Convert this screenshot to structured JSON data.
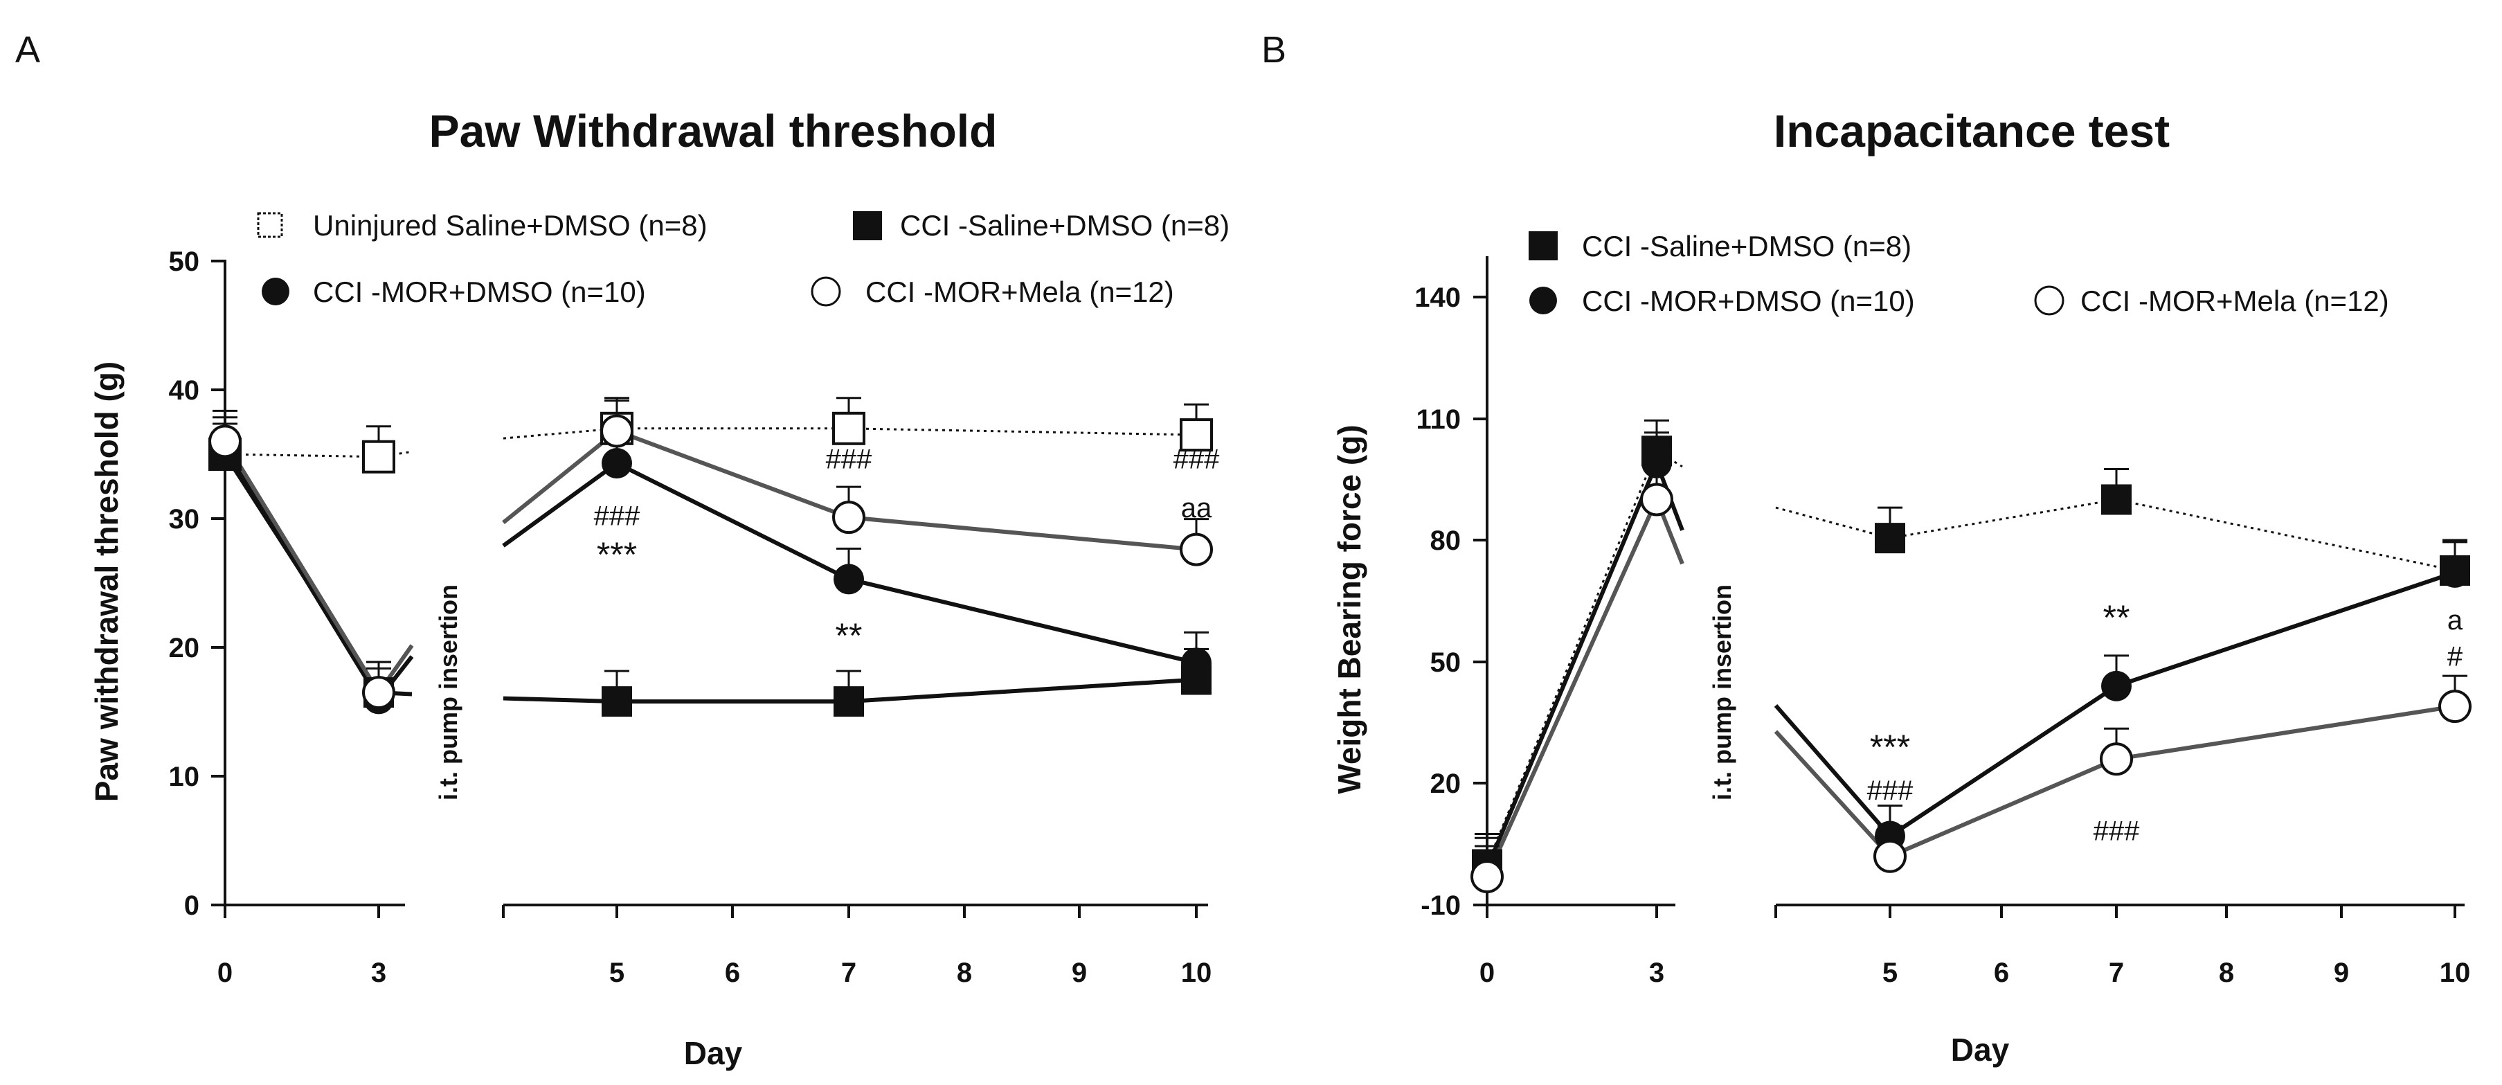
{
  "colors": {
    "black": "#111111",
    "gray_line": "#555555",
    "white": "#ffffff"
  },
  "chart_data": [
    {
      "type": "line",
      "panel_letter": "A",
      "title": "Paw Withdrawal threshold",
      "xlabel": "Day",
      "ylabel": "Paw withdrawal threshold (g)",
      "ylim": [
        0,
        50
      ],
      "yticks": [
        "0",
        "10",
        "20",
        "30",
        "40",
        "50"
      ],
      "xticks": [
        "0",
        "3",
        "5",
        "6",
        "7",
        "8",
        "9",
        "10"
      ],
      "break_label": "i.t. pump insertion",
      "series": [
        {
          "name": "Uninjured Saline+DMSO (n=8)",
          "marker": "open-square",
          "line": "dotted",
          "x": [
            0,
            3,
            5,
            7,
            10
          ],
          "y": [
            35,
            34.8,
            37,
            37,
            36.5
          ]
        },
        {
          "name": "CCI -Saline+DMSO (n=8)",
          "marker": "filled-square",
          "line": "solid",
          "x": [
            0,
            3,
            5,
            7,
            10
          ],
          "y": [
            35,
            16.5,
            15.8,
            15.8,
            17.5
          ]
        },
        {
          "name": "CCI -MOR+DMSO (n=10)",
          "marker": "filled-circle",
          "line": "solid",
          "x": [
            0,
            3,
            5,
            7,
            10
          ],
          "y": [
            35.5,
            16,
            34.3,
            25.3,
            18.8
          ]
        },
        {
          "name": "CCI -MOR+Mela (n=12)",
          "marker": "open-circle",
          "line": "gray",
          "x": [
            0,
            3,
            5,
            7,
            10
          ],
          "y": [
            36,
            16.5,
            36.8,
            30.1,
            27.6
          ]
        }
      ],
      "annotations": [
        {
          "text": "###",
          "x": 5,
          "y": 29.5
        },
        {
          "text": "***",
          "x": 5,
          "y": 26.3
        },
        {
          "text": "###",
          "x": 7,
          "y": 33.9
        },
        {
          "text": "**",
          "x": 7,
          "y": 20
        },
        {
          "text": "###",
          "x": 10,
          "y": 33.9
        },
        {
          "text": "aa",
          "x": 10,
          "y": 30.1
        }
      ]
    },
    {
      "type": "line",
      "panel_letter": "B",
      "title": "Incapacitance test",
      "xlabel": "Day",
      "ylabel": "Weight Bearing force (g)",
      "ylim": [
        -10,
        150
      ],
      "yticks": [
        "-10",
        "20",
        "50",
        "80",
        "110",
        "140"
      ],
      "xticks": [
        "0",
        "3",
        "5",
        "6",
        "7",
        "8",
        "9",
        "10"
      ],
      "break_label": "i.t. pump insertion",
      "series": [
        {
          "name": "CCI -Saline+DMSO (n=8)",
          "marker": "filled-square",
          "line": "dotted",
          "x": [
            0,
            3,
            5,
            7,
            10
          ],
          "y": [
            0,
            102,
            80.5,
            90,
            72.5
          ]
        },
        {
          "name": "CCI -MOR+DMSO (n=10)",
          "marker": "filled-circle",
          "line": "solid",
          "x": [
            0,
            3,
            5,
            7,
            10
          ],
          "y": [
            -1,
            99,
            7,
            44,
            72
          ]
        },
        {
          "name": "CCI -MOR+Mela (n=12)",
          "marker": "open-circle",
          "line": "gray",
          "x": [
            0,
            3,
            5,
            7,
            10
          ],
          "y": [
            -3,
            90,
            2,
            26,
            39
          ]
        }
      ],
      "annotations": [
        {
          "text": "***",
          "x": 5,
          "y": 26
        },
        {
          "text": "###",
          "x": 5,
          "y": 16
        },
        {
          "text": "**",
          "x": 7,
          "y": 58
        },
        {
          "text": "###",
          "x": 7,
          "y": 6
        },
        {
          "text": "a",
          "x": 10,
          "y": 58
        },
        {
          "text": "#",
          "x": 10,
          "y": 49
        }
      ]
    }
  ]
}
